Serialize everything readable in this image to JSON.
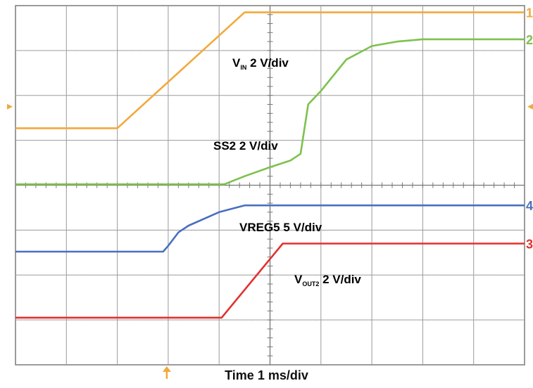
{
  "chart_data": {
    "type": "line",
    "xlabel": "Time 1 ms/div",
    "x_divisions": 10,
    "y_divisions": 8,
    "grid": true,
    "trigger_position_div": 3.0,
    "colors": {
      "vin": "#f2a93b",
      "ss2": "#7dc14e",
      "vreg5": "#4a6fc0",
      "vout2": "#e2312f",
      "grid": "#9a9a9a",
      "frame": "#7a7a7a"
    },
    "series": [
      {
        "key": "vin",
        "name": "V_IN 2 V/div",
        "name_main": "V",
        "name_sub": "IN",
        "name_rest": " 2 V/div",
        "channel_marker": "1",
        "color": "#f2a93b",
        "x": [
          0,
          2.0,
          4.5,
          10
        ],
        "y": [
          5.27,
          5.27,
          7.85,
          7.85
        ]
      },
      {
        "key": "ss2",
        "name": "SS2 2 V/div",
        "name_main": "SS2 2 V/div",
        "name_sub": "",
        "name_rest": "",
        "channel_marker": "2",
        "color": "#7dc14e",
        "x": [
          0,
          4.1,
          4.5,
          5.0,
          5.4,
          5.6,
          5.75,
          6.0,
          6.5,
          7.0,
          7.5,
          8.0,
          10
        ],
        "y": [
          4.02,
          4.02,
          4.2,
          4.4,
          4.55,
          4.7,
          5.8,
          6.1,
          6.8,
          7.1,
          7.2,
          7.25,
          7.25
        ]
      },
      {
        "key": "vreg5",
        "name": "VREG5 5 V/div",
        "name_main": "VREG5 5 V/div",
        "name_sub": "",
        "name_rest": "",
        "channel_marker": "4",
        "color": "#4a6fc0",
        "x": [
          0,
          2.9,
          3.0,
          3.2,
          3.4,
          4.0,
          4.5,
          10
        ],
        "y": [
          2.52,
          2.52,
          2.65,
          2.95,
          3.1,
          3.4,
          3.55,
          3.55
        ]
      },
      {
        "key": "vout2",
        "name": "V_OUT2 2 V/div",
        "name_main": "V",
        "name_sub": "OUT2",
        "name_rest": " 2 V/div",
        "channel_marker": "3",
        "color": "#e2312f",
        "x": [
          0,
          4.05,
          5.25,
          10
        ],
        "y": [
          1.05,
          1.05,
          2.7,
          2.7
        ]
      }
    ]
  }
}
